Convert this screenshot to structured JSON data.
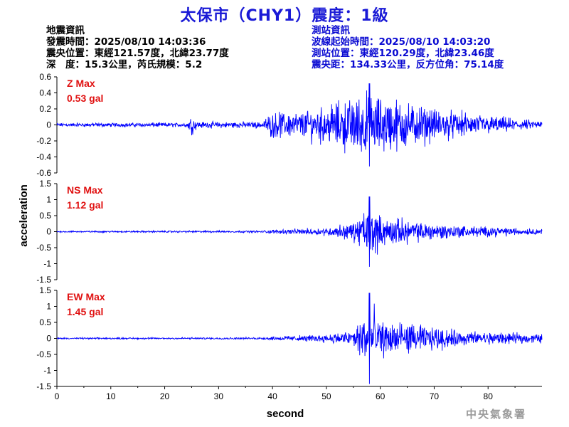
{
  "header": {
    "title": "太保市（CHY1）震度：1級"
  },
  "quake_info": {
    "heading": "地震資訊",
    "origin_time": "發震時間：2025/08/10 14:03:36",
    "epicenter": "震央位置：東經121.57度，北緯23.77度",
    "depth_magnitude": "深　度：15.3公里，芮氏規模：5.2"
  },
  "station_info": {
    "heading": "測站資訊",
    "wave_start": "波線起始時間：2025/08/10 14:03:20",
    "station_location": "測站位置：東經120.29度，北緯23.46度",
    "distance_azimuth": "震央距：134.33公里，反方位角：75.14度"
  },
  "watermark": "中央氣象署",
  "chart_data": {
    "type": "line",
    "xlabel": "second",
    "ylabel": "acceleration",
    "xlim": [
      0,
      90
    ],
    "x_ticks": [
      "0",
      "10",
      "20",
      "30",
      "40",
      "50",
      "60",
      "70",
      "80"
    ],
    "line_color": "#0000ff",
    "label_color": "#e01010",
    "panels": [
      {
        "name": "Z Max",
        "max_label": "0.53 gal",
        "max_value": 0.53,
        "ylim": [
          -0.6,
          0.6
        ],
        "y_ticks": [
          "0.6",
          "0.4",
          "0.2",
          "0",
          "-0.2",
          "-0.4",
          "-0.6"
        ],
        "envelope": [
          [
            0,
            0.03
          ],
          [
            20,
            0.035
          ],
          [
            24,
            0.035
          ],
          [
            25,
            0.16
          ],
          [
            26,
            0.05
          ],
          [
            38,
            0.05
          ],
          [
            40,
            0.2
          ],
          [
            45,
            0.22
          ],
          [
            50,
            0.3
          ],
          [
            56,
            0.48
          ],
          [
            58,
            0.53
          ],
          [
            62,
            0.45
          ],
          [
            66,
            0.35
          ],
          [
            70,
            0.25
          ],
          [
            75,
            0.2
          ],
          [
            80,
            0.15
          ],
          [
            85,
            0.1
          ],
          [
            90,
            0.06
          ]
        ]
      },
      {
        "name": "NS Max",
        "max_label": "1.12 gal",
        "max_value": 1.12,
        "ylim": [
          -1.5,
          1.5
        ],
        "y_ticks": [
          "1.5",
          "1",
          "0.5",
          "0",
          "-0.5",
          "-1",
          "-1.5"
        ],
        "envelope": [
          [
            0,
            0.03
          ],
          [
            38,
            0.04
          ],
          [
            40,
            0.08
          ],
          [
            50,
            0.15
          ],
          [
            55,
            0.4
          ],
          [
            57,
            0.7
          ],
          [
            58,
            1.12
          ],
          [
            60,
            0.6
          ],
          [
            63,
            0.55
          ],
          [
            66,
            0.4
          ],
          [
            70,
            0.35
          ],
          [
            75,
            0.25
          ],
          [
            80,
            0.2
          ],
          [
            85,
            0.15
          ],
          [
            90,
            0.1
          ]
        ]
      },
      {
        "name": "EW Max",
        "max_label": "1.45 gal",
        "max_value": 1.45,
        "ylim": [
          -1.5,
          1.5
        ],
        "y_ticks": [
          "1.5",
          "1",
          "0.5",
          "0",
          "-0.5",
          "-1",
          "-1.5"
        ],
        "envelope": [
          [
            0,
            0.03
          ],
          [
            38,
            0.04
          ],
          [
            40,
            0.08
          ],
          [
            50,
            0.15
          ],
          [
            55,
            0.35
          ],
          [
            57,
            1.0
          ],
          [
            58,
            1.45
          ],
          [
            60,
            0.7
          ],
          [
            63,
            0.65
          ],
          [
            66,
            0.55
          ],
          [
            70,
            0.45
          ],
          [
            75,
            0.3
          ],
          [
            80,
            0.25
          ],
          [
            85,
            0.2
          ],
          [
            90,
            0.18
          ]
        ]
      }
    ]
  }
}
